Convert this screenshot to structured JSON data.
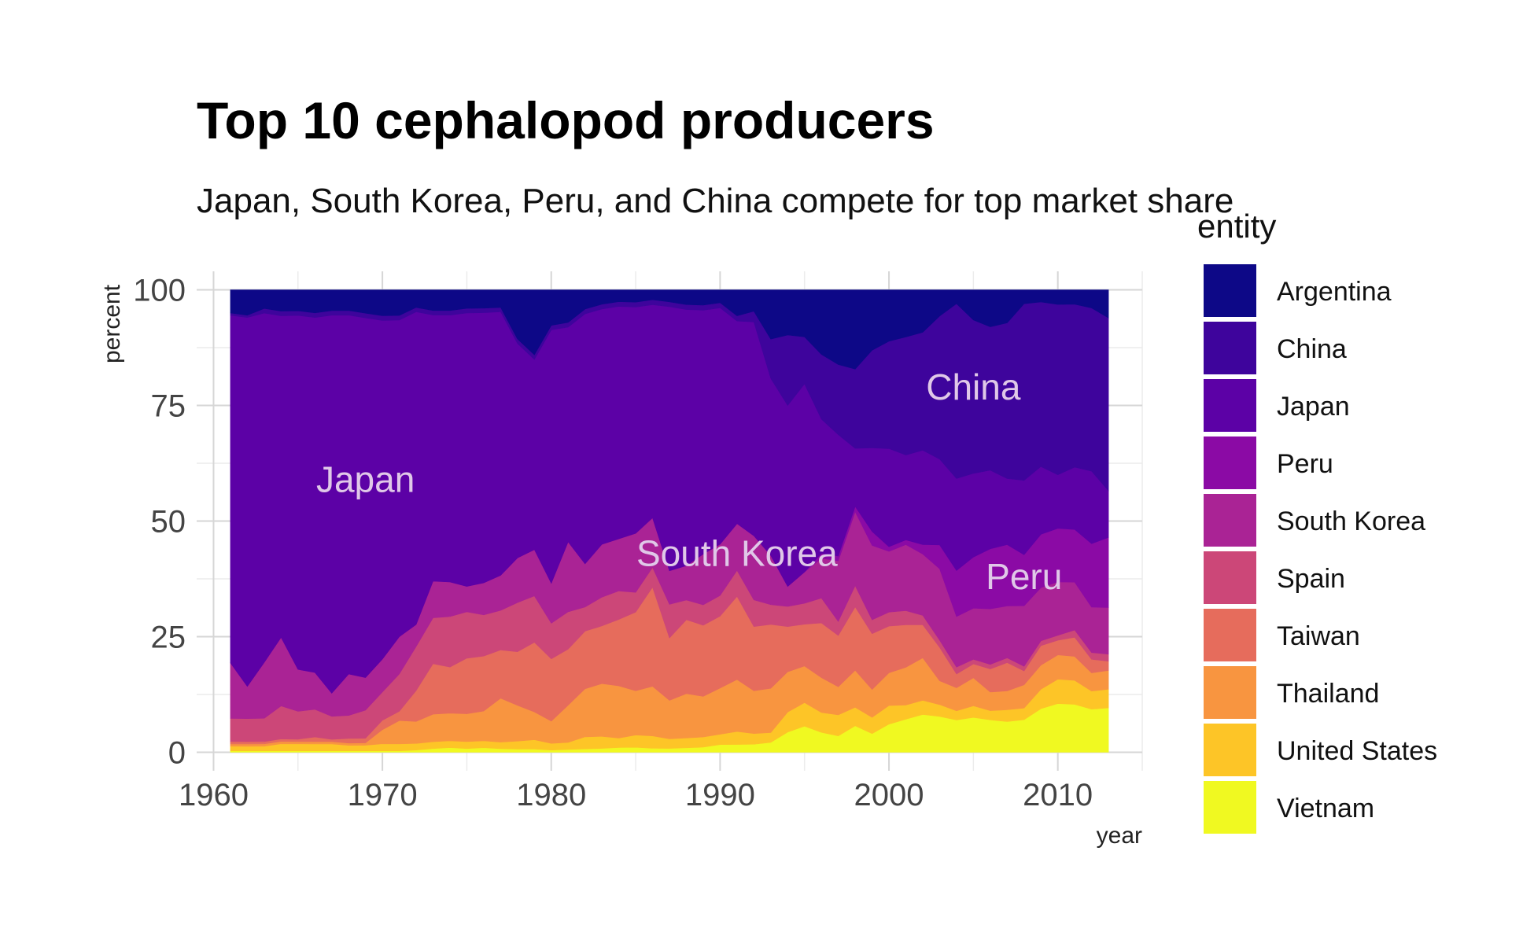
{
  "chart_data": {
    "type": "area",
    "stacked": true,
    "normalized": true,
    "title": "Top 10 cephalopod producers",
    "subtitle": "Japan, South Korea, Peru, and China compete for top market share",
    "xlabel": "year",
    "ylabel": "percent",
    "xlim": [
      1959,
      2015
    ],
    "ylim": [
      -4,
      104
    ],
    "x_ticks": [
      1960,
      1970,
      1980,
      1990,
      2000,
      2010
    ],
    "y_ticks": [
      0,
      25,
      50,
      75,
      100
    ],
    "grid": true,
    "legend_title": "entity",
    "legend_position": "right",
    "x": [
      1961,
      1962,
      1963,
      1964,
      1965,
      1966,
      1967,
      1968,
      1969,
      1970,
      1971,
      1972,
      1973,
      1974,
      1975,
      1976,
      1977,
      1978,
      1979,
      1980,
      1981,
      1982,
      1983,
      1984,
      1985,
      1986,
      1987,
      1988,
      1989,
      1990,
      1991,
      1992,
      1993,
      1994,
      1995,
      1996,
      1997,
      1998,
      1999,
      2000,
      2001,
      2002,
      2003,
      2004,
      2005,
      2006,
      2007,
      2008,
      2009,
      2010,
      2011,
      2012,
      2013
    ],
    "series": [
      {
        "name": "Vietnam",
        "color": "#f0f921",
        "values": [
          0.3,
          0.3,
          0.3,
          0.3,
          0.3,
          0.3,
          0.3,
          0.3,
          0.3,
          0.3,
          0.3,
          0.5,
          0.8,
          1,
          0.8,
          1,
          0.8,
          0.7,
          0.7,
          0.5,
          0.6,
          0.7,
          0.8,
          1,
          1,
          0.8,
          0.8,
          0.9,
          1,
          1.5,
          1.5,
          1.5,
          2,
          4,
          5,
          4,
          3.5,
          5,
          4,
          6,
          7,
          8,
          7.5,
          7,
          7.5,
          7,
          6.5,
          7,
          9,
          10,
          10,
          9.5,
          9.5
        ]
      },
      {
        "name": "United States",
        "color": "#fdc527",
        "values": [
          1,
          1,
          1,
          1.5,
          1.5,
          1.5,
          1.5,
          1.2,
          1.2,
          1.5,
          1.5,
          1.5,
          1.5,
          1.5,
          1.5,
          1.5,
          1.5,
          1.8,
          2,
          1.5,
          1.5,
          2.5,
          2.5,
          2,
          2.5,
          2.5,
          2,
          2,
          2,
          2,
          2.5,
          2,
          2,
          4,
          4.5,
          4,
          4.5,
          3.5,
          3.5,
          4,
          3,
          3,
          2.5,
          2,
          2.5,
          2,
          2.5,
          2.5,
          4,
          5,
          5,
          4,
          4
        ]
      },
      {
        "name": "Thailand",
        "color": "#f89540",
        "values": [
          0.5,
          0.5,
          0.5,
          0.5,
          0.5,
          0.5,
          0.5,
          0.5,
          0.5,
          3,
          5,
          5,
          6,
          6,
          6,
          6.5,
          10,
          8,
          6,
          5,
          8,
          10,
          11,
          11,
          9,
          10,
          8,
          9,
          8,
          9,
          10,
          8,
          9,
          8,
          7,
          7,
          6,
          7,
          6,
          7,
          8,
          9,
          5,
          5,
          6,
          4,
          4,
          5,
          5,
          5,
          5,
          4,
          4
        ]
      },
      {
        "name": "Taiwan",
        "color": "#e66c5c",
        "values": [
          0.5,
          0.5,
          0.5,
          0.5,
          0.5,
          1,
          0.5,
          1,
          1,
          2,
          2,
          7,
          11,
          10,
          12,
          12,
          11,
          12,
          15,
          14,
          12,
          12,
          12,
          14,
          16,
          20,
          13,
          15,
          14,
          14,
          16,
          12,
          13,
          9,
          8,
          11,
          11,
          12,
          12,
          10,
          9,
          7,
          7,
          3,
          3,
          5,
          6,
          3,
          4,
          3,
          4,
          3,
          2
        ]
      },
      {
        "name": "Spain",
        "color": "#cc4778",
        "values": [
          5,
          5,
          5,
          7,
          6,
          6,
          5,
          5,
          6,
          6,
          8,
          10,
          10,
          11,
          10,
          9,
          9,
          11,
          10,
          8,
          8,
          5,
          6,
          6,
          4,
          4,
          7,
          4,
          4,
          4,
          5,
          5,
          4,
          4,
          4,
          5,
          3,
          4,
          3,
          3,
          3,
          2,
          1.5,
          1.5,
          1,
          1,
          1,
          1,
          1,
          1,
          1.5,
          1.5,
          1.5
        ]
      },
      {
        "name": "South Korea",
        "color": "#aa2395",
        "values": [
          12,
          7,
          12,
          14.5,
          9,
          8,
          5,
          9,
          7,
          7,
          8,
          5,
          8,
          7.5,
          5.5,
          7,
          8,
          10,
          10,
          9,
          15,
          9,
          11,
          11,
          12,
          10,
          7,
          7,
          10,
          10,
          9,
          12,
          10,
          4,
          6,
          8,
          13,
          14,
          16,
          13,
          14,
          13,
          15,
          11,
          11,
          12,
          11,
          13,
          11,
          11,
          10,
          10,
          10
        ]
      },
      {
        "name": "Peru",
        "color": "#8b0aa5",
        "values": [
          0,
          0,
          0,
          0,
          0,
          0,
          0,
          0,
          0,
          0,
          0,
          0,
          0,
          0,
          0,
          0,
          0,
          0,
          0,
          0,
          0,
          0,
          0,
          0,
          0,
          0,
          0,
          0,
          0,
          0,
          0,
          0,
          0,
          0,
          0,
          1,
          1,
          1,
          3,
          1,
          1,
          2,
          5,
          10,
          11,
          13,
          13,
          11,
          11,
          11,
          11,
          14,
          15
        ]
      },
      {
        "name": "Japan",
        "color": "#5c01a6",
        "values": [
          75,
          80,
          75,
          68,
          76,
          77,
          82,
          78,
          77,
          72,
          68,
          71,
          58,
          58,
          59,
          59,
          60,
          48,
          41,
          57,
          46,
          52,
          49,
          49,
          46,
          43,
          55,
          52,
          48,
          46,
          39,
          40,
          36,
          36,
          36,
          27,
          26,
          11,
          18,
          21,
          18,
          20,
          18,
          20,
          18,
          17,
          14,
          16,
          14,
          11,
          13,
          16,
          10
        ]
      },
      {
        "name": "China",
        "color": "#3e049c",
        "values": [
          0.5,
          0.5,
          1,
          1,
          1,
          1,
          1,
          1,
          1,
          1,
          1,
          1,
          1,
          1,
          1,
          1,
          1,
          1,
          1,
          1,
          1,
          1,
          1,
          1,
          1,
          1,
          1,
          1,
          1,
          1,
          1,
          2,
          8,
          14,
          9,
          13,
          15,
          15,
          21,
          23,
          25,
          25,
          30,
          38,
          33,
          31,
          33,
          38,
          34,
          35,
          34,
          36,
          37
        ]
      },
      {
        "name": "Argentina",
        "color": "#0d0887",
        "values": [
          5,
          5.5,
          4,
          4.5,
          4.5,
          5,
          4.5,
          4.5,
          5,
          5.5,
          5.5,
          4,
          4.5,
          4.5,
          4,
          4,
          4,
          11,
          14,
          8,
          7,
          4,
          3,
          2.5,
          2.5,
          2,
          2.5,
          3,
          3,
          2.5,
          5,
          4,
          10,
          9,
          9,
          13,
          16,
          15,
          13,
          11,
          10,
          9,
          5.5,
          3,
          6.5,
          8,
          7,
          3,
          2.5,
          3,
          3,
          4,
          6
        ]
      }
    ],
    "annotations": [
      {
        "text": "Japan",
        "x": 1969,
        "y": 59
      },
      {
        "text": "South Korea",
        "x": 1991,
        "y": 43
      },
      {
        "text": "China",
        "x": 2005,
        "y": 79
      },
      {
        "text": "Peru",
        "x": 2008,
        "y": 38
      }
    ]
  }
}
